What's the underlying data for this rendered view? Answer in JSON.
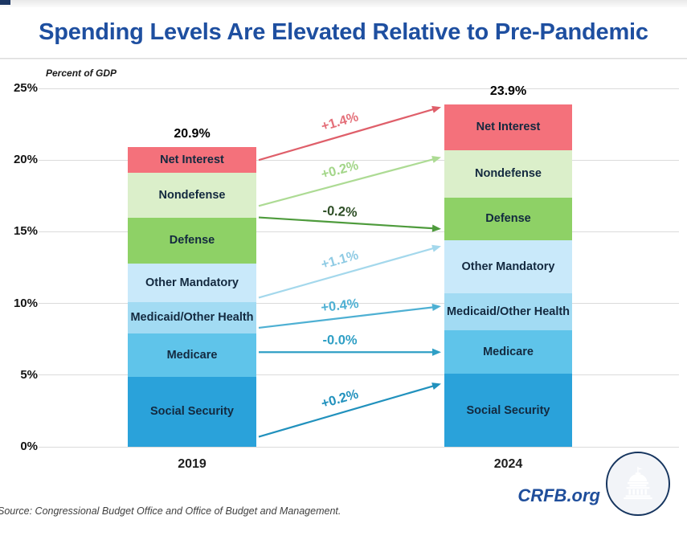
{
  "header": {
    "title": "Spending Levels Are Elevated Relative to Pre-Pandemic"
  },
  "axis_note": "Percent of GDP",
  "footer": {
    "source": "Source: Congressional Budget Office and Office of Budget and Management.",
    "brand": "CRFB.org",
    "logo": "capitol-dome-in-circle"
  },
  "colors": {
    "title": "#1e4fa0",
    "gridline": "#dbdbdb",
    "segment_label": "#13293f",
    "brand": "#1f4e9b",
    "logo_navy": "#16355f"
  },
  "chart_data": {
    "type": "bar",
    "variant": "stacked_column_comparison_with_change_arrows",
    "title": "Spending Levels Are Elevated Relative to Pre-Pandemic",
    "unit_label": "Percent of GDP",
    "categories": [
      "2019",
      "2024"
    ],
    "totals": [
      20.9,
      23.9
    ],
    "total_labels": [
      "20.9%",
      "23.9%"
    ],
    "ylim": [
      0,
      25
    ],
    "ytick_values": [
      25,
      20,
      15,
      10,
      5,
      0
    ],
    "ytick_labels": [
      "25%",
      "20%",
      "15%",
      "10%",
      "5%",
      "0%"
    ],
    "grid": true,
    "stack_order": "bottom_to_top",
    "series": [
      {
        "name": "Social Security",
        "values": [
          4.9,
          5.1
        ],
        "color": "#2aa2da",
        "change_label": "+0.2%",
        "arrow_color": "#2191bd",
        "label_color": "#2191bd",
        "arrow_from_pct": 0.7,
        "arrow_to_pct": 4.4
      },
      {
        "name": "Medicare",
        "values": [
          3.0,
          3.0
        ],
        "color": "#5fc4ea",
        "change_label": "-0.0%",
        "arrow_color": "#2f9fc5",
        "label_color": "#2f9fc5",
        "arrow_from_pct": 6.6,
        "arrow_to_pct": 6.6
      },
      {
        "name": "Medicaid/Other Health",
        "values": [
          2.2,
          2.6
        ],
        "color": "#a2dbf3",
        "change_label": "+0.4%",
        "arrow_color": "#4eb0d3",
        "label_color": "#4eb0d3",
        "arrow_from_pct": 8.3,
        "arrow_to_pct": 9.8
      },
      {
        "name": "Other Mandatory",
        "values": [
          2.7,
          3.7
        ],
        "color": "#c9e9fa",
        "change_label": "+1.1%",
        "arrow_color": "#a4d8ec",
        "label_color": "#8fcbe4",
        "arrow_from_pct": 10.4,
        "arrow_to_pct": 14.0
      },
      {
        "name": "Defense",
        "values": [
          3.2,
          3.0
        ],
        "color": "#8ed166",
        "change_label": "-0.2%",
        "arrow_color": "#4e9b3c",
        "label_color": "#2f4f27",
        "arrow_from_pct": 16.0,
        "arrow_to_pct": 15.2
      },
      {
        "name": "Nondefense",
        "values": [
          3.1,
          3.3
        ],
        "color": "#dbefca",
        "change_label": "+0.2%",
        "arrow_color": "#addb94",
        "label_color": "#a3d689",
        "arrow_from_pct": 16.8,
        "arrow_to_pct": 20.2
      },
      {
        "name": "Net Interest",
        "values": [
          1.8,
          3.2
        ],
        "color": "#f4717b",
        "change_label": "+1.4%",
        "arrow_color": "#df5f6a",
        "label_color": "#e4707a",
        "arrow_from_pct": 20.0,
        "arrow_to_pct": 23.7
      }
    ]
  }
}
